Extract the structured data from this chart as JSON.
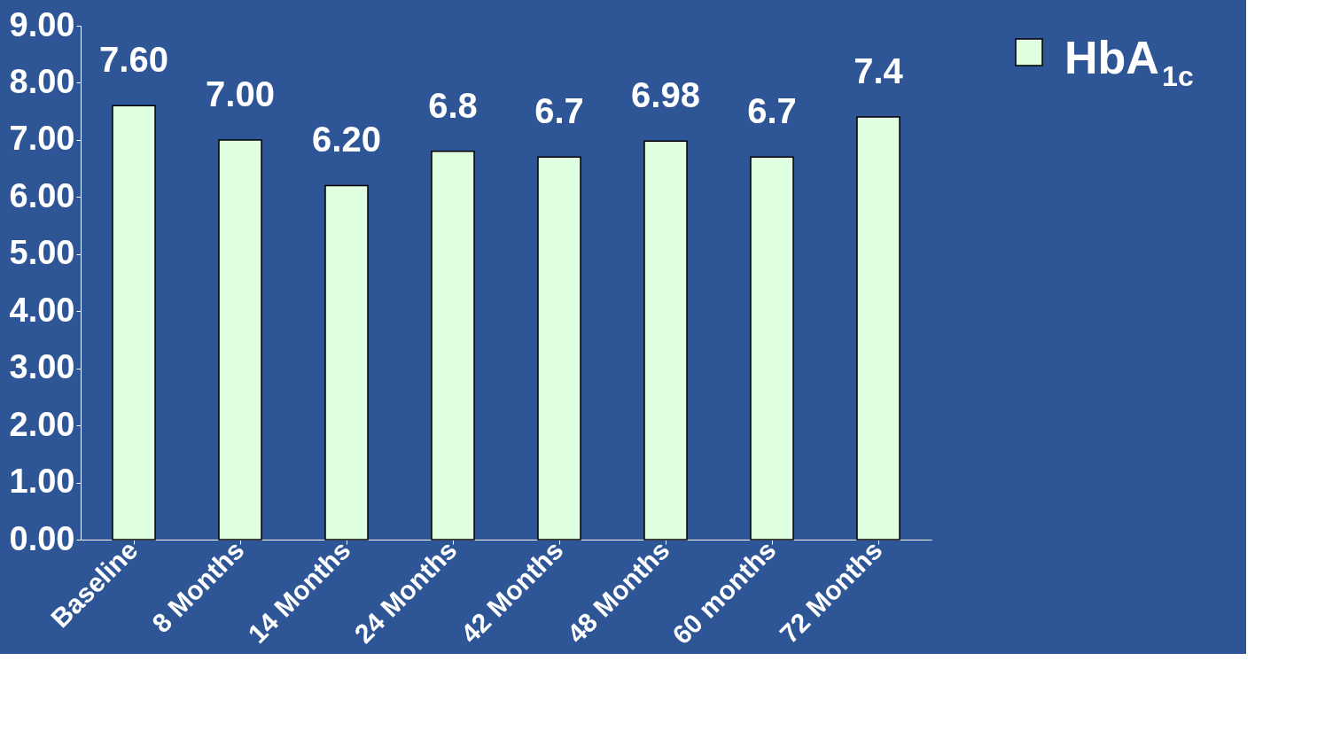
{
  "chart_data": {
    "type": "bar",
    "categories": [
      "Baseline",
      "8 Months",
      "14 Months",
      "24 Months",
      "42 Months",
      "48 Months",
      "60 months",
      "72 Months"
    ],
    "series": [
      {
        "name": "HbA$_{1c}$",
        "color": "#e0ffe0",
        "values": [
          7.6,
          7.0,
          6.2,
          6.8,
          6.7,
          6.98,
          6.7,
          7.4
        ],
        "value_labels": [
          "7.60",
          "7.00",
          "6.20",
          "6.8",
          "6.7",
          "6.98",
          "6.7",
          "7.4"
        ]
      }
    ],
    "ylim": [
      0,
      9
    ],
    "yticks": [
      {
        "value": 0,
        "label": "0.00"
      },
      {
        "value": 1,
        "label": "1.00"
      },
      {
        "value": 2,
        "label": "2.00"
      },
      {
        "value": 3,
        "label": "3.00"
      },
      {
        "value": 4,
        "label": "4.00"
      },
      {
        "value": 5,
        "label": "5.00"
      },
      {
        "value": 6,
        "label": "6.00"
      },
      {
        "value": 7,
        "label": "7.00"
      },
      {
        "value": 8,
        "label": "8.00"
      },
      {
        "value": 9,
        "label": "9.00"
      }
    ],
    "grid": false,
    "legend": "top right"
  }
}
